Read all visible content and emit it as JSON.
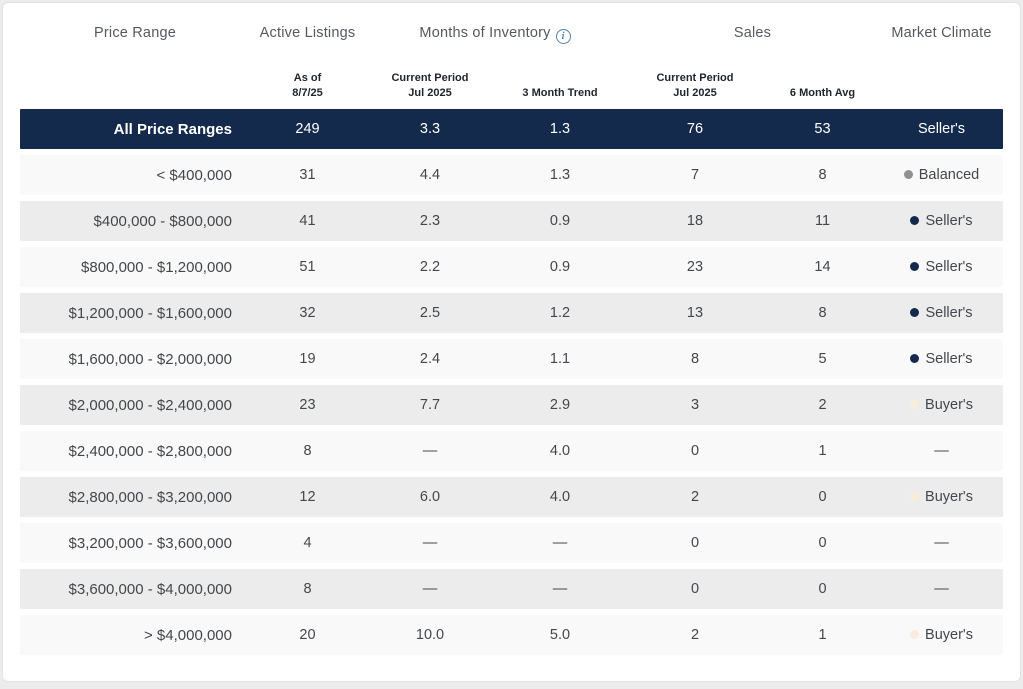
{
  "header": {
    "price_range": "Price Range",
    "active_listings": "Active Listings",
    "months_of_inventory": "Months of Inventory",
    "info_icon_glyph": "i",
    "sales": "Sales",
    "market_climate": "Market Climate",
    "sub_as_of_line1": "As of",
    "sub_as_of_line2": "8/7/25",
    "sub_current_period_line1": "Current Period",
    "sub_current_period_line2": "Jul 2025",
    "sub_trend": "3 Month Trend",
    "sub_sales_current_line1": "Current Period",
    "sub_sales_current_line2": "Jul 2025",
    "sub_sales_avg": "6 Month Avg"
  },
  "colors": {
    "navy": "#132a4c",
    "seller_dot": "#132a4c",
    "balanced_dot": "#8e9196",
    "buyer_dot": "#f7edda"
  },
  "chart_data": {
    "type": "table",
    "title": "Market report by price range",
    "columns": [
      "Price Range",
      "Active Listings — As of 8/7/25",
      "Months of Inventory — Current Period Jul 2025",
      "Months of Inventory — 3 Month Trend",
      "Sales — Current Period Jul 2025",
      "Sales — 6 Month Avg",
      "Market Climate"
    ],
    "rows": [
      {
        "price_range": "All Price Ranges",
        "active_listings": "249",
        "inventory_current": "3.3",
        "inventory_trend": "1.3",
        "sales_current": "76",
        "sales_avg6": "53",
        "climate": "Seller's",
        "climate_dot": "none",
        "variant": "total"
      },
      {
        "price_range": "< $400,000",
        "active_listings": "31",
        "inventory_current": "4.4",
        "inventory_trend": "1.3",
        "sales_current": "7",
        "sales_avg6": "8",
        "climate": "Balanced",
        "climate_dot": "balanced",
        "variant": "light"
      },
      {
        "price_range": "$400,000 - $800,000",
        "active_listings": "41",
        "inventory_current": "2.3",
        "inventory_trend": "0.9",
        "sales_current": "18",
        "sales_avg6": "11",
        "climate": "Seller's",
        "climate_dot": "seller",
        "variant": "gray"
      },
      {
        "price_range": "$800,000 - $1,200,000",
        "active_listings": "51",
        "inventory_current": "2.2",
        "inventory_trend": "0.9",
        "sales_current": "23",
        "sales_avg6": "14",
        "climate": "Seller's",
        "climate_dot": "seller",
        "variant": "light"
      },
      {
        "price_range": "$1,200,000 - $1,600,000",
        "active_listings": "32",
        "inventory_current": "2.5",
        "inventory_trend": "1.2",
        "sales_current": "13",
        "sales_avg6": "8",
        "climate": "Seller's",
        "climate_dot": "seller",
        "variant": "gray"
      },
      {
        "price_range": "$1,600,000 - $2,000,000",
        "active_listings": "19",
        "inventory_current": "2.4",
        "inventory_trend": "1.1",
        "sales_current": "8",
        "sales_avg6": "5",
        "climate": "Seller's",
        "climate_dot": "seller",
        "variant": "light"
      },
      {
        "price_range": "$2,000,000 - $2,400,000",
        "active_listings": "23",
        "inventory_current": "7.7",
        "inventory_trend": "2.9",
        "sales_current": "3",
        "sales_avg6": "2",
        "climate": "Buyer's",
        "climate_dot": "buyer",
        "variant": "gray"
      },
      {
        "price_range": "$2,400,000 - $2,800,000",
        "active_listings": "8",
        "inventory_current": "—",
        "inventory_trend": "4.0",
        "sales_current": "0",
        "sales_avg6": "1",
        "climate": "—",
        "climate_dot": "none",
        "variant": "light"
      },
      {
        "price_range": "$2,800,000 - $3,200,000",
        "active_listings": "12",
        "inventory_current": "6.0",
        "inventory_trend": "4.0",
        "sales_current": "2",
        "sales_avg6": "0",
        "climate": "Buyer's",
        "climate_dot": "buyer",
        "variant": "gray"
      },
      {
        "price_range": "$3,200,000 - $3,600,000",
        "active_listings": "4",
        "inventory_current": "—",
        "inventory_trend": "—",
        "sales_current": "0",
        "sales_avg6": "0",
        "climate": "—",
        "climate_dot": "none",
        "variant": "light"
      },
      {
        "price_range": "$3,600,000 - $4,000,000",
        "active_listings": "8",
        "inventory_current": "—",
        "inventory_trend": "—",
        "sales_current": "0",
        "sales_avg6": "0",
        "climate": "—",
        "climate_dot": "none",
        "variant": "gray"
      },
      {
        "price_range": "> $4,000,000",
        "active_listings": "20",
        "inventory_current": "10.0",
        "inventory_trend": "5.0",
        "sales_current": "2",
        "sales_avg6": "1",
        "climate": "Buyer's",
        "climate_dot": "buyer",
        "variant": "light"
      }
    ]
  }
}
